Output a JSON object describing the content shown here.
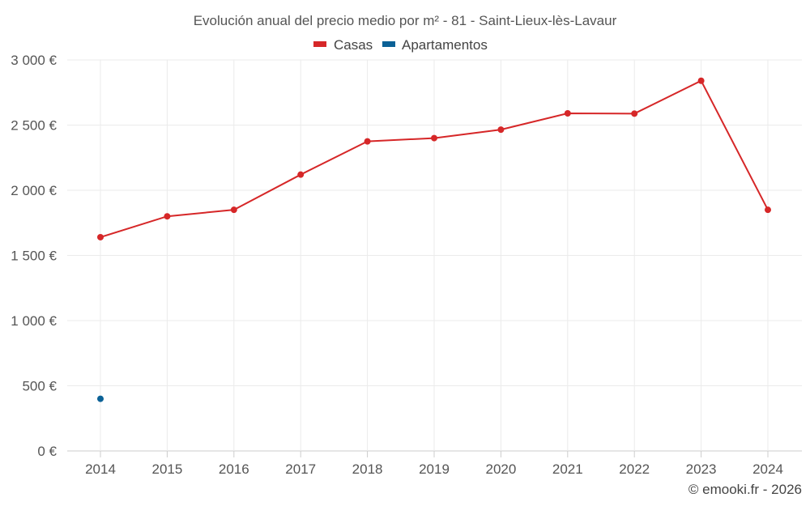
{
  "chart_data": {
    "type": "line",
    "title": "Evolución anual del precio medio por m² - 81 - Saint-Lieux-lès-Lavaur",
    "x": [
      "2014",
      "2015",
      "2016",
      "2017",
      "2018",
      "2019",
      "2020",
      "2021",
      "2022",
      "2023",
      "2024"
    ],
    "series": [
      {
        "name": "Casas",
        "color": "#d62728",
        "values": [
          1640,
          1800,
          1850,
          2120,
          2375,
          2400,
          2465,
          2590,
          2588,
          2840,
          1850
        ]
      },
      {
        "name": "Apartamentos",
        "color": "#0b6196",
        "values": [
          400,
          null,
          null,
          null,
          null,
          null,
          null,
          null,
          null,
          null,
          null
        ]
      }
    ],
    "ylim": [
      0,
      3000
    ],
    "yticks": [
      0,
      500,
      1000,
      1500,
      2000,
      2500,
      3000
    ],
    "ytick_labels": [
      "0 €",
      "500 €",
      "1 000 €",
      "1 500 €",
      "2 000 €",
      "2 500 €",
      "3 000 €"
    ],
    "xlabel": "",
    "ylabel": "",
    "grid": true,
    "legend_position": "top-center"
  },
  "credit": "© emooki.fr - 2026"
}
